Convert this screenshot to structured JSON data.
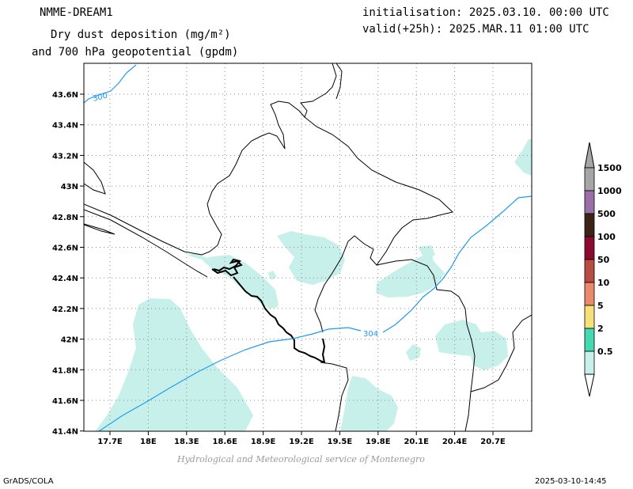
{
  "header": {
    "model": "NMME-DREAM1",
    "title_line1": "Dry dust deposition (mg/m²)",
    "title_line2": "and 700 hPa geopotential (gpdm)",
    "init": "initialisation: 2025.03.10. 00:00 UTC",
    "valid": "valid(+25h): 2025.MAR.11 01:00 UTC"
  },
  "map": {
    "lon_ticks": [
      "17.7E",
      "18E",
      "18.3E",
      "18.6E",
      "18.9E",
      "19.2E",
      "19.5E",
      "19.8E",
      "20.1E",
      "20.4E",
      "20.7E"
    ],
    "lat_ticks": [
      "43.6N",
      "43.4N",
      "43.2N",
      "43N",
      "42.8N",
      "42.6N",
      "42.4N",
      "42.2N",
      "42N",
      "41.8N",
      "41.6N",
      "41.4N"
    ],
    "contour_labels": [
      "300",
      "304"
    ],
    "colors": {
      "dust_light": "#c8f0eb",
      "contour": "#1e9bef"
    }
  },
  "legend": {
    "items": [
      {
        "label": "1500",
        "color": "#a6a6a6"
      },
      {
        "label": "1000",
        "color": "#9a6fa8"
      },
      {
        "label": "500",
        "color": "#3b2416"
      },
      {
        "label": "100",
        "color": "#8b0a2f"
      },
      {
        "label": "50",
        "color": "#b84b42"
      },
      {
        "label": "10",
        "color": "#ea8a6c"
      },
      {
        "label": "5",
        "color": "#f5e17a"
      },
      {
        "label": "2",
        "color": "#44d9b0"
      },
      {
        "label": "0.5",
        "color": "#c8f0eb"
      }
    ]
  },
  "footer": {
    "credit": "Hydrological and Meteorological service of Montenegro",
    "software": "GrADS/COLA",
    "timestamp": "2025-03-10-14:45"
  }
}
